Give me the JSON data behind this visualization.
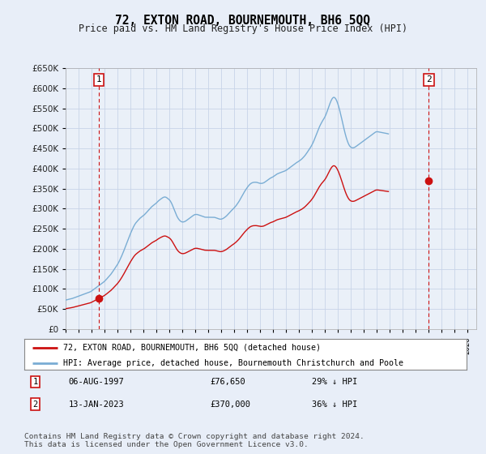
{
  "title": "72, EXTON ROAD, BOURNEMOUTH, BH6 5QQ",
  "subtitle": "Price paid vs. HM Land Registry's House Price Index (HPI)",
  "legend_line1": "72, EXTON ROAD, BOURNEMOUTH, BH6 5QQ (detached house)",
  "legend_line2": "HPI: Average price, detached house, Bournemouth Christchurch and Poole",
  "sale1_date": "06-AUG-1997",
  "sale1_price": "£76,650",
  "sale1_hpi": "29% ↓ HPI",
  "sale2_date": "13-JAN-2023",
  "sale2_price": "£370,000",
  "sale2_hpi": "36% ↓ HPI",
  "footer": "Contains HM Land Registry data © Crown copyright and database right 2024.\nThis data is licensed under the Open Government Licence v3.0.",
  "hpi_color": "#7aadd4",
  "price_color": "#cc1111",
  "marker_box_color": "#cc1111",
  "bg_color": "#e8eef8",
  "plot_bg": "#eaf0f8",
  "grid_color": "#c8d4e8",
  "ylim": [
    0,
    650000
  ],
  "yticks": [
    0,
    50000,
    100000,
    150000,
    200000,
    250000,
    300000,
    350000,
    400000,
    450000,
    500000,
    550000,
    600000,
    650000
  ],
  "xlim_start": 1995.3,
  "xlim_end": 2026.7,
  "sale1_x": 1997.58,
  "sale1_y": 76650,
  "sale2_x": 2023.04,
  "sale2_y": 370000,
  "xtick_years": [
    1995,
    1996,
    1997,
    1998,
    1999,
    2000,
    2001,
    2002,
    2003,
    2004,
    2005,
    2006,
    2007,
    2008,
    2009,
    2010,
    2011,
    2012,
    2013,
    2014,
    2015,
    2016,
    2017,
    2018,
    2019,
    2020,
    2021,
    2022,
    2023,
    2024,
    2025,
    2026
  ],
  "hpi_monthly_base": [
    72000,
    73000,
    74000,
    74500,
    75000,
    75500,
    76000,
    77000,
    78000,
    79000,
    80000,
    81000,
    82000,
    83000,
    84000,
    85000,
    86000,
    87000,
    88000,
    89000,
    90000,
    91000,
    92000,
    93000,
    95000,
    97000,
    99000,
    101000,
    103000,
    105000,
    107000,
    109000,
    111000,
    113000,
    115000,
    117000,
    119000,
    122000,
    125000,
    128000,
    131000,
    134000,
    137000,
    141000,
    145000,
    149000,
    153000,
    157000,
    161000,
    166000,
    171000,
    177000,
    183000,
    189000,
    196000,
    203000,
    210000,
    217000,
    224000,
    231000,
    238000,
    244000,
    250000,
    256000,
    261000,
    265000,
    268000,
    271000,
    274000,
    277000,
    279000,
    281000,
    283000,
    285000,
    288000,
    291000,
    294000,
    297000,
    300000,
    303000,
    306000,
    308000,
    310000,
    312000,
    314000,
    317000,
    320000,
    322000,
    324000,
    326000,
    328000,
    329000,
    330000,
    329000,
    327000,
    325000,
    323000,
    320000,
    315000,
    309000,
    302000,
    295000,
    288000,
    282000,
    277000,
    273000,
    270000,
    268000,
    267000,
    267000,
    268000,
    269000,
    271000,
    273000,
    275000,
    277000,
    279000,
    281000,
    283000,
    285000,
    286000,
    286000,
    286000,
    285000,
    284000,
    283000,
    282000,
    281000,
    280000,
    279000,
    279000,
    279000,
    279000,
    279000,
    279000,
    279000,
    279000,
    279000,
    279000,
    278000,
    277000,
    276000,
    275000,
    274000,
    274000,
    275000,
    276000,
    278000,
    280000,
    282000,
    285000,
    288000,
    291000,
    294000,
    297000,
    299000,
    302000,
    305000,
    308000,
    312000,
    316000,
    320000,
    325000,
    330000,
    335000,
    340000,
    344000,
    348000,
    352000,
    356000,
    359000,
    362000,
    364000,
    365000,
    366000,
    366000,
    366000,
    366000,
    365000,
    364000,
    363000,
    363000,
    363000,
    364000,
    365000,
    367000,
    369000,
    371000,
    373000,
    375000,
    377000,
    378000,
    379000,
    381000,
    383000,
    385000,
    387000,
    388000,
    389000,
    390000,
    391000,
    392000,
    393000,
    394000,
    395000,
    397000,
    399000,
    401000,
    403000,
    405000,
    407000,
    409000,
    411000,
    413000,
    415000,
    416000,
    418000,
    420000,
    422000,
    424000,
    427000,
    430000,
    433000,
    437000,
    441000,
    445000,
    449000,
    453000,
    458000,
    463000,
    469000,
    476000,
    483000,
    490000,
    497000,
    503000,
    509000,
    514000,
    519000,
    523000,
    527000,
    533000,
    540000,
    548000,
    556000,
    563000,
    570000,
    575000,
    578000,
    578000,
    575000,
    570000,
    563000,
    554000,
    544000,
    533000,
    521000,
    509000,
    497000,
    486000,
    476000,
    468000,
    461000,
    456000,
    453000,
    452000,
    451000,
    452000,
    453000,
    455000,
    457000,
    459000,
    461000,
    463000,
    465000,
    467000,
    469000,
    471000,
    473000,
    475000,
    477000,
    479000,
    481000,
    483000,
    485000,
    487000,
    489000,
    491000,
    492000,
    492000,
    491000,
    491000,
    490000,
    490000,
    489000,
    489000,
    488000,
    488000,
    487000,
    486000
  ]
}
